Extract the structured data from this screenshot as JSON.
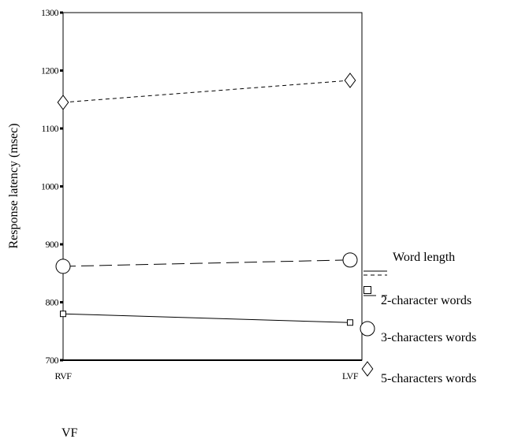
{
  "chart_data": {
    "type": "line",
    "title": "",
    "xlabel": "VF",
    "ylabel": "Response latency (msec)",
    "categories": [
      "RVF",
      "LVF"
    ],
    "ylim": [
      700,
      1300
    ],
    "yticks": [
      "700",
      "800",
      "900",
      "1000",
      "1100",
      "1200",
      "1300"
    ],
    "grid": false,
    "legend": {
      "title": "Word length",
      "placement": "right"
    },
    "series": [
      {
        "name": "2-character words",
        "values": [
          780,
          765
        ],
        "marker": "square",
        "line_style": "solid"
      },
      {
        "name": "3-characters words",
        "values": [
          862,
          873
        ],
        "marker": "circle",
        "line_style": "long-dash"
      },
      {
        "name": "5-characters words",
        "values": [
          1145,
          1183
        ],
        "marker": "diamond",
        "line_style": "short-dash"
      }
    ]
  }
}
